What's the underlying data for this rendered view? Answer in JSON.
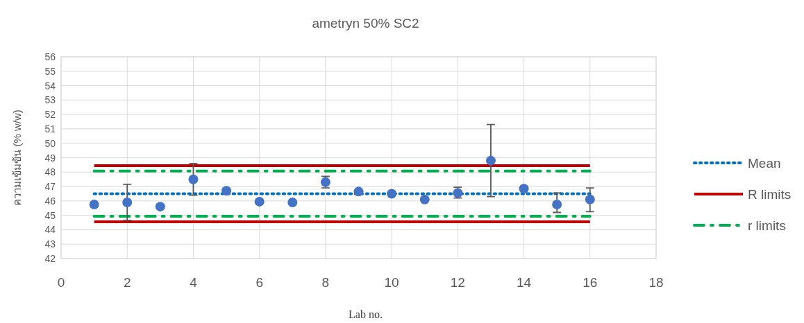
{
  "chart_data": {
    "type": "scatter",
    "title": "ametryn 50% SC2",
    "xlabel": "Lab no.",
    "ylabel": "ความเข้มข้น (% w/w)",
    "xlim": [
      0,
      18
    ],
    "xticks": [
      0,
      2,
      4,
      6,
      8,
      10,
      12,
      14,
      16,
      18
    ],
    "ylim": [
      42,
      56
    ],
    "yticks": [
      42,
      43,
      44,
      45,
      46,
      47,
      48,
      49,
      50,
      51,
      52,
      53,
      54,
      55,
      56
    ],
    "grid": true,
    "legend": "right",
    "series": [
      {
        "type": "line",
        "name": "Mean",
        "color": "#0070c0",
        "line_style": "dotted",
        "x": [
          1,
          16
        ],
        "values": [
          46.5,
          46.5
        ]
      },
      {
        "type": "line",
        "name": "R limits",
        "color": "#c00000",
        "line_style": "solid",
        "x": [
          1,
          16
        ],
        "values": [
          48.45,
          48.45
        ]
      },
      {
        "type": "line",
        "color": "#c00000",
        "line_style": "solid",
        "x": [
          1,
          16
        ],
        "values": [
          44.55,
          44.55
        ]
      },
      {
        "type": "line",
        "name": "r limits",
        "color": "#00b050",
        "line_style": "dashdot",
        "x": [
          1,
          16
        ],
        "values": [
          48.07,
          48.07
        ]
      },
      {
        "type": "line",
        "color": "#00b050",
        "line_style": "dashdot",
        "x": [
          1,
          16
        ],
        "values": [
          44.93,
          44.93
        ]
      },
      {
        "color": "#4472c4",
        "marker": "circle",
        "x": [
          1,
          2,
          3,
          4,
          5,
          6,
          7,
          8,
          9,
          10,
          11,
          12,
          13,
          14,
          15,
          16
        ],
        "values": [
          45.75,
          45.9,
          45.6,
          47.5,
          46.7,
          45.95,
          45.9,
          47.3,
          46.65,
          46.5,
          46.1,
          46.55,
          48.8,
          46.85,
          45.75,
          46.1
        ],
        "errors": [
          null,
          [
            44.65,
            47.15
          ],
          null,
          [
            46.4,
            48.6
          ],
          null,
          null,
          null,
          [
            46.9,
            47.7
          ],
          null,
          null,
          null,
          [
            46.2,
            46.95
          ],
          [
            46.3,
            51.3
          ],
          null,
          [
            45.2,
            46.55
          ],
          [
            45.25,
            46.9
          ]
        ]
      }
    ]
  }
}
